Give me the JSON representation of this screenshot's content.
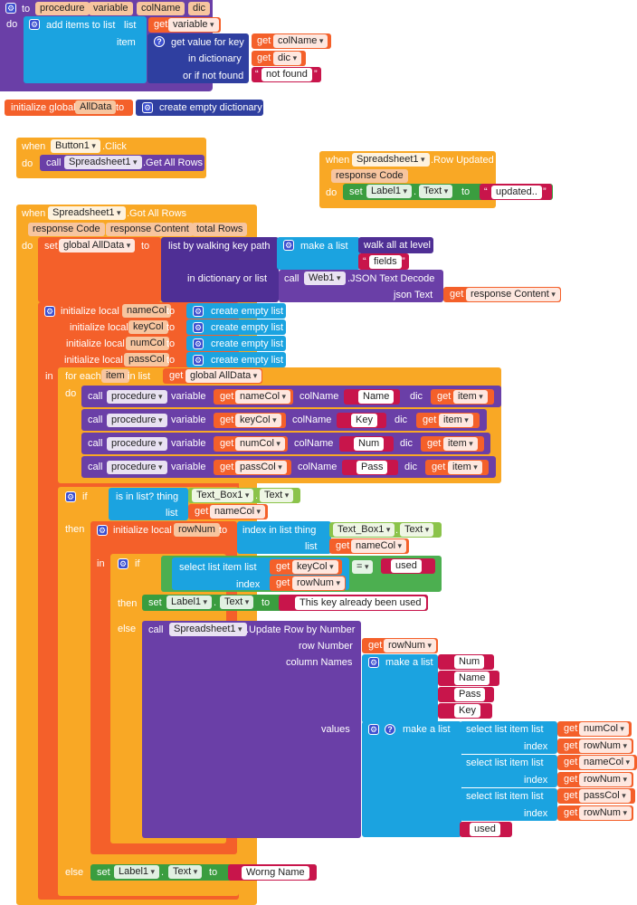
{
  "procedure_def": {
    "to": "to",
    "name": "procedure",
    "params": [
      "variable",
      "colName",
      "dic"
    ],
    "do": "do",
    "add_items": "add items to list",
    "list": "list",
    "item": "item",
    "get": "get",
    "variable": "variable",
    "get_value": "get value for key",
    "colName": "colName",
    "in_dictionary": "in dictionary",
    "dic": "dic",
    "or_if_not_found": "or if not found",
    "not_found": "not found"
  },
  "global_init": {
    "label": "initialize global",
    "name": "AllData",
    "to": "to",
    "create_dict": "create empty dictionary"
  },
  "button_click": {
    "when": "when",
    "component": "Button1",
    "event": ".Click",
    "do": "do",
    "call": "call",
    "target": "Spreadsheet1",
    "method": ".Get All Rows"
  },
  "row_updated": {
    "when": "when",
    "component": "Spreadsheet1",
    "event": ".Row Updated",
    "param": "response Code",
    "do": "do",
    "set": "set",
    "label": "Label1",
    "prop": "Text",
    "to": "to",
    "value": "updated.."
  },
  "got_all_rows": {
    "when": "when",
    "component": "Spreadsheet1",
    "event": ".Got All Rows",
    "params": [
      "response Code",
      "response Content",
      "total Rows"
    ],
    "do": "do",
    "set": "set",
    "global": "global AllData",
    "to": "to",
    "walk": "list by walking key path",
    "make_list": "make a list",
    "walk_all": "walk all at level",
    "fields": "fields",
    "in_dict_or_list": "in dictionary or list",
    "call": "call",
    "web": "Web1",
    "json_decode": ".JSON Text Decode",
    "json_text": "json Text",
    "get": "get",
    "response_content": "response Content",
    "init_local": "initialize local",
    "locals": [
      "nameCol",
      "keyCol",
      "numCol",
      "passCol"
    ],
    "create_empty_list": "create empty list",
    "in": "in",
    "for_each": "for each",
    "item": "item",
    "in_list": "in list",
    "global_alldata": "global AllData",
    "calls": [
      {
        "var": "nameCol",
        "col": "Name"
      },
      {
        "var": "keyCol",
        "col": "Key"
      },
      {
        "var": "numCol",
        "col": "Num"
      },
      {
        "var": "passCol",
        "col": "Pass"
      }
    ],
    "procedure": "procedure",
    "variable": "variable",
    "colName": "colName",
    "dic": "dic",
    "if": "if",
    "is_in_list": "is in list? thing",
    "list": "list",
    "text_box": "Text_Box1",
    "text": "Text",
    "nameCol": "nameCol",
    "then": "then",
    "rowNum": "rowNum",
    "index_in_list": "index in list  thing",
    "select_list_item": "select list item  list",
    "index": "index",
    "keyCol": "keyCol",
    "eq": "=",
    "used": "used",
    "label": "Label1",
    "already_used": "This key already been used",
    "else": "else",
    "spreadsheet": "Spreadsheet1",
    "update_row": ".Update Row by Number",
    "row_number": "row Number",
    "column_names": "column Names",
    "columns": [
      "Num",
      "Name",
      "Pass",
      "Key"
    ],
    "values": "values",
    "numCol": "numCol",
    "passCol": "passCol",
    "wrong_name": "Worng Name"
  },
  "colors": {
    "procedure": "#6a3fa7",
    "variables": "#f4602a",
    "control": "#f9a825",
    "lists": "#1ba3e0",
    "text": "#c8154b",
    "component": "#3a9d3f",
    "dictionary": "#2f3fa0"
  }
}
